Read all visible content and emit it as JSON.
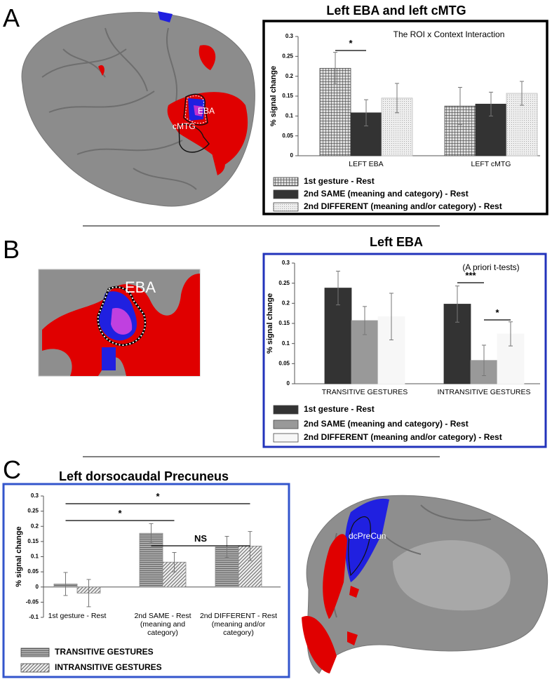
{
  "panel_labels": [
    "A",
    "B",
    "C"
  ],
  "brain_labels": [
    [
      "EBA",
      "cMTG"
    ],
    [
      "EBA"
    ],
    [
      "dcPreCun"
    ]
  ],
  "chart_data": [
    {
      "type": "bar",
      "title": "Left EBA and left cMTG",
      "annotation": "The ROI x Context Interaction",
      "ylabel": "% signal change",
      "categories": [
        "LEFT EBA",
        "LEFT cMTG"
      ],
      "ylim": [
        0,
        0.3
      ],
      "yticks": [
        0,
        0.05,
        0.1,
        0.15,
        0.2,
        0.25,
        0.3
      ],
      "significance": [
        "*"
      ],
      "series": [
        {
          "name": "1st gesture - Rest",
          "color": "#444444",
          "pattern": "crosshatch",
          "values": [
            0.22,
            0.125
          ],
          "errors": [
            0.04,
            0.047
          ]
        },
        {
          "name": "2nd SAME (meaning and category) - Rest",
          "color": "#333333",
          "pattern": "solid",
          "values": [
            0.108,
            0.13
          ],
          "errors": [
            0.033,
            0.03
          ]
        },
        {
          "name": "2nd DIFFERENT (meaning and/or category) - Rest",
          "color": "#bbbbbb",
          "pattern": "dots",
          "values": [
            0.145,
            0.157
          ],
          "errors": [
            0.037,
            0.03
          ]
        }
      ]
    },
    {
      "type": "bar",
      "title": "Left EBA",
      "annotation": "(A priori t-tests)",
      "ylabel": "% signal change",
      "categories": [
        "TRANSITIVE GESTURES",
        "INTRANSITIVE GESTURES"
      ],
      "ylim": [
        0,
        0.3
      ],
      "yticks": [
        0,
        0.05,
        0.1,
        0.15,
        0.2,
        0.25,
        0.3
      ],
      "significance": [
        "***",
        "*"
      ],
      "series": [
        {
          "name": "1st gesture - Rest",
          "color": "#333333",
          "pattern": "solid",
          "values": [
            0.238,
            0.198
          ],
          "errors": [
            0.042,
            0.045
          ]
        },
        {
          "name": "2nd SAME (meaning and category) - Rest",
          "color": "#999999",
          "pattern": "solid",
          "values": [
            0.157,
            0.058
          ],
          "errors": [
            0.035,
            0.038
          ]
        },
        {
          "name": "2nd DIFFERENT (meaning and/or category) - Rest",
          "color": "#f7f7f7",
          "pattern": "solid",
          "values": [
            0.167,
            0.124
          ],
          "errors": [
            0.058,
            0.03
          ]
        }
      ]
    },
    {
      "type": "bar",
      "title": "Left dorsocaudal Precuneus",
      "ylabel": "% signal change",
      "categories": [
        "1st gesture - Rest",
        "2nd SAME - Rest\n(meaning and\ncategory)",
        "2nd DIFFERENT - Rest\n(meaning and/or\ncategory)"
      ],
      "ylim": [
        -0.1,
        0.3
      ],
      "yticks": [
        -0.1,
        -0.05,
        0,
        0.05,
        0.1,
        0.15,
        0.2,
        0.25,
        0.3
      ],
      "significance": [
        "*",
        "*",
        "NS"
      ],
      "series": [
        {
          "name": "TRANSITIVE GESTURES",
          "color": "#888888",
          "pattern": "hstripes",
          "values": [
            0.01,
            0.177,
            0.132
          ],
          "errors": [
            0.038,
            0.032,
            0.035
          ]
        },
        {
          "name": "INTRANSITIVE GESTURES",
          "color": "#888888",
          "pattern": "diagonal",
          "values": [
            -0.02,
            0.082,
            0.135
          ],
          "errors": [
            0.045,
            0.032,
            0.048
          ]
        }
      ]
    }
  ]
}
